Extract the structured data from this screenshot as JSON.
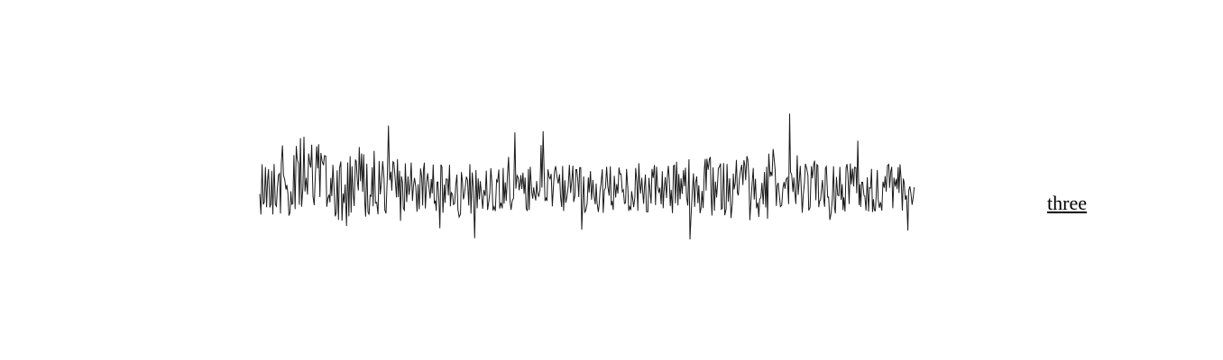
{
  "waveform": {
    "icon": "audio-waveform",
    "color": "#1a1a1a"
  },
  "label": {
    "text": "three"
  }
}
